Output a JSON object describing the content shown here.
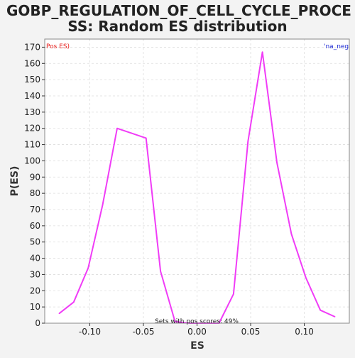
{
  "chart_data": {
    "type": "line",
    "title_line1": "GOBP_REGULATION_OF_CELL_CYCLE_PROCE",
    "title_line2": "SS: Random ES distribution",
    "xlabel": "ES",
    "ylabel": "P(ES)",
    "xlim": [
      -0.142,
      0.142
    ],
    "ylim": [
      0,
      175
    ],
    "xticks": [
      -0.1,
      -0.05,
      0.0,
      0.05,
      0.1
    ],
    "xtick_labels": [
      "-0.10",
      "-0.05",
      "0.00",
      "0.05",
      "0.10"
    ],
    "yticks": [
      0,
      10,
      20,
      30,
      40,
      50,
      60,
      70,
      80,
      90,
      100,
      110,
      120,
      130,
      140,
      150,
      160,
      170
    ],
    "grid": true,
    "legend_left": "Pos ES)",
    "legend_right": "'na_neg",
    "legend_left_color": "#e8221f",
    "legend_right_color": "#1f2bd6",
    "annotation": "Sets with pos scores: 49%",
    "series": [
      {
        "color": "#f03cf7",
        "x": [
          -0.1285,
          -0.115,
          -0.1015,
          -0.088,
          -0.0745,
          -0.061,
          -0.0475,
          -0.034,
          -0.0205,
          -0.007,
          0.007,
          0.0205,
          0.034,
          0.0475,
          0.061,
          0.0745,
          0.088,
          0.1015,
          0.115,
          0.1285
        ],
        "y": [
          6,
          13,
          34,
          73,
          120,
          117,
          114,
          32,
          1,
          0,
          0,
          0,
          18,
          112,
          167,
          99,
          55,
          28,
          8,
          4
        ]
      }
    ]
  },
  "colors": {
    "background": "#f3f3f3",
    "plot_bg": "#ffffff",
    "grid": "#dddddd",
    "axis": "#333333",
    "text": "#222222"
  }
}
